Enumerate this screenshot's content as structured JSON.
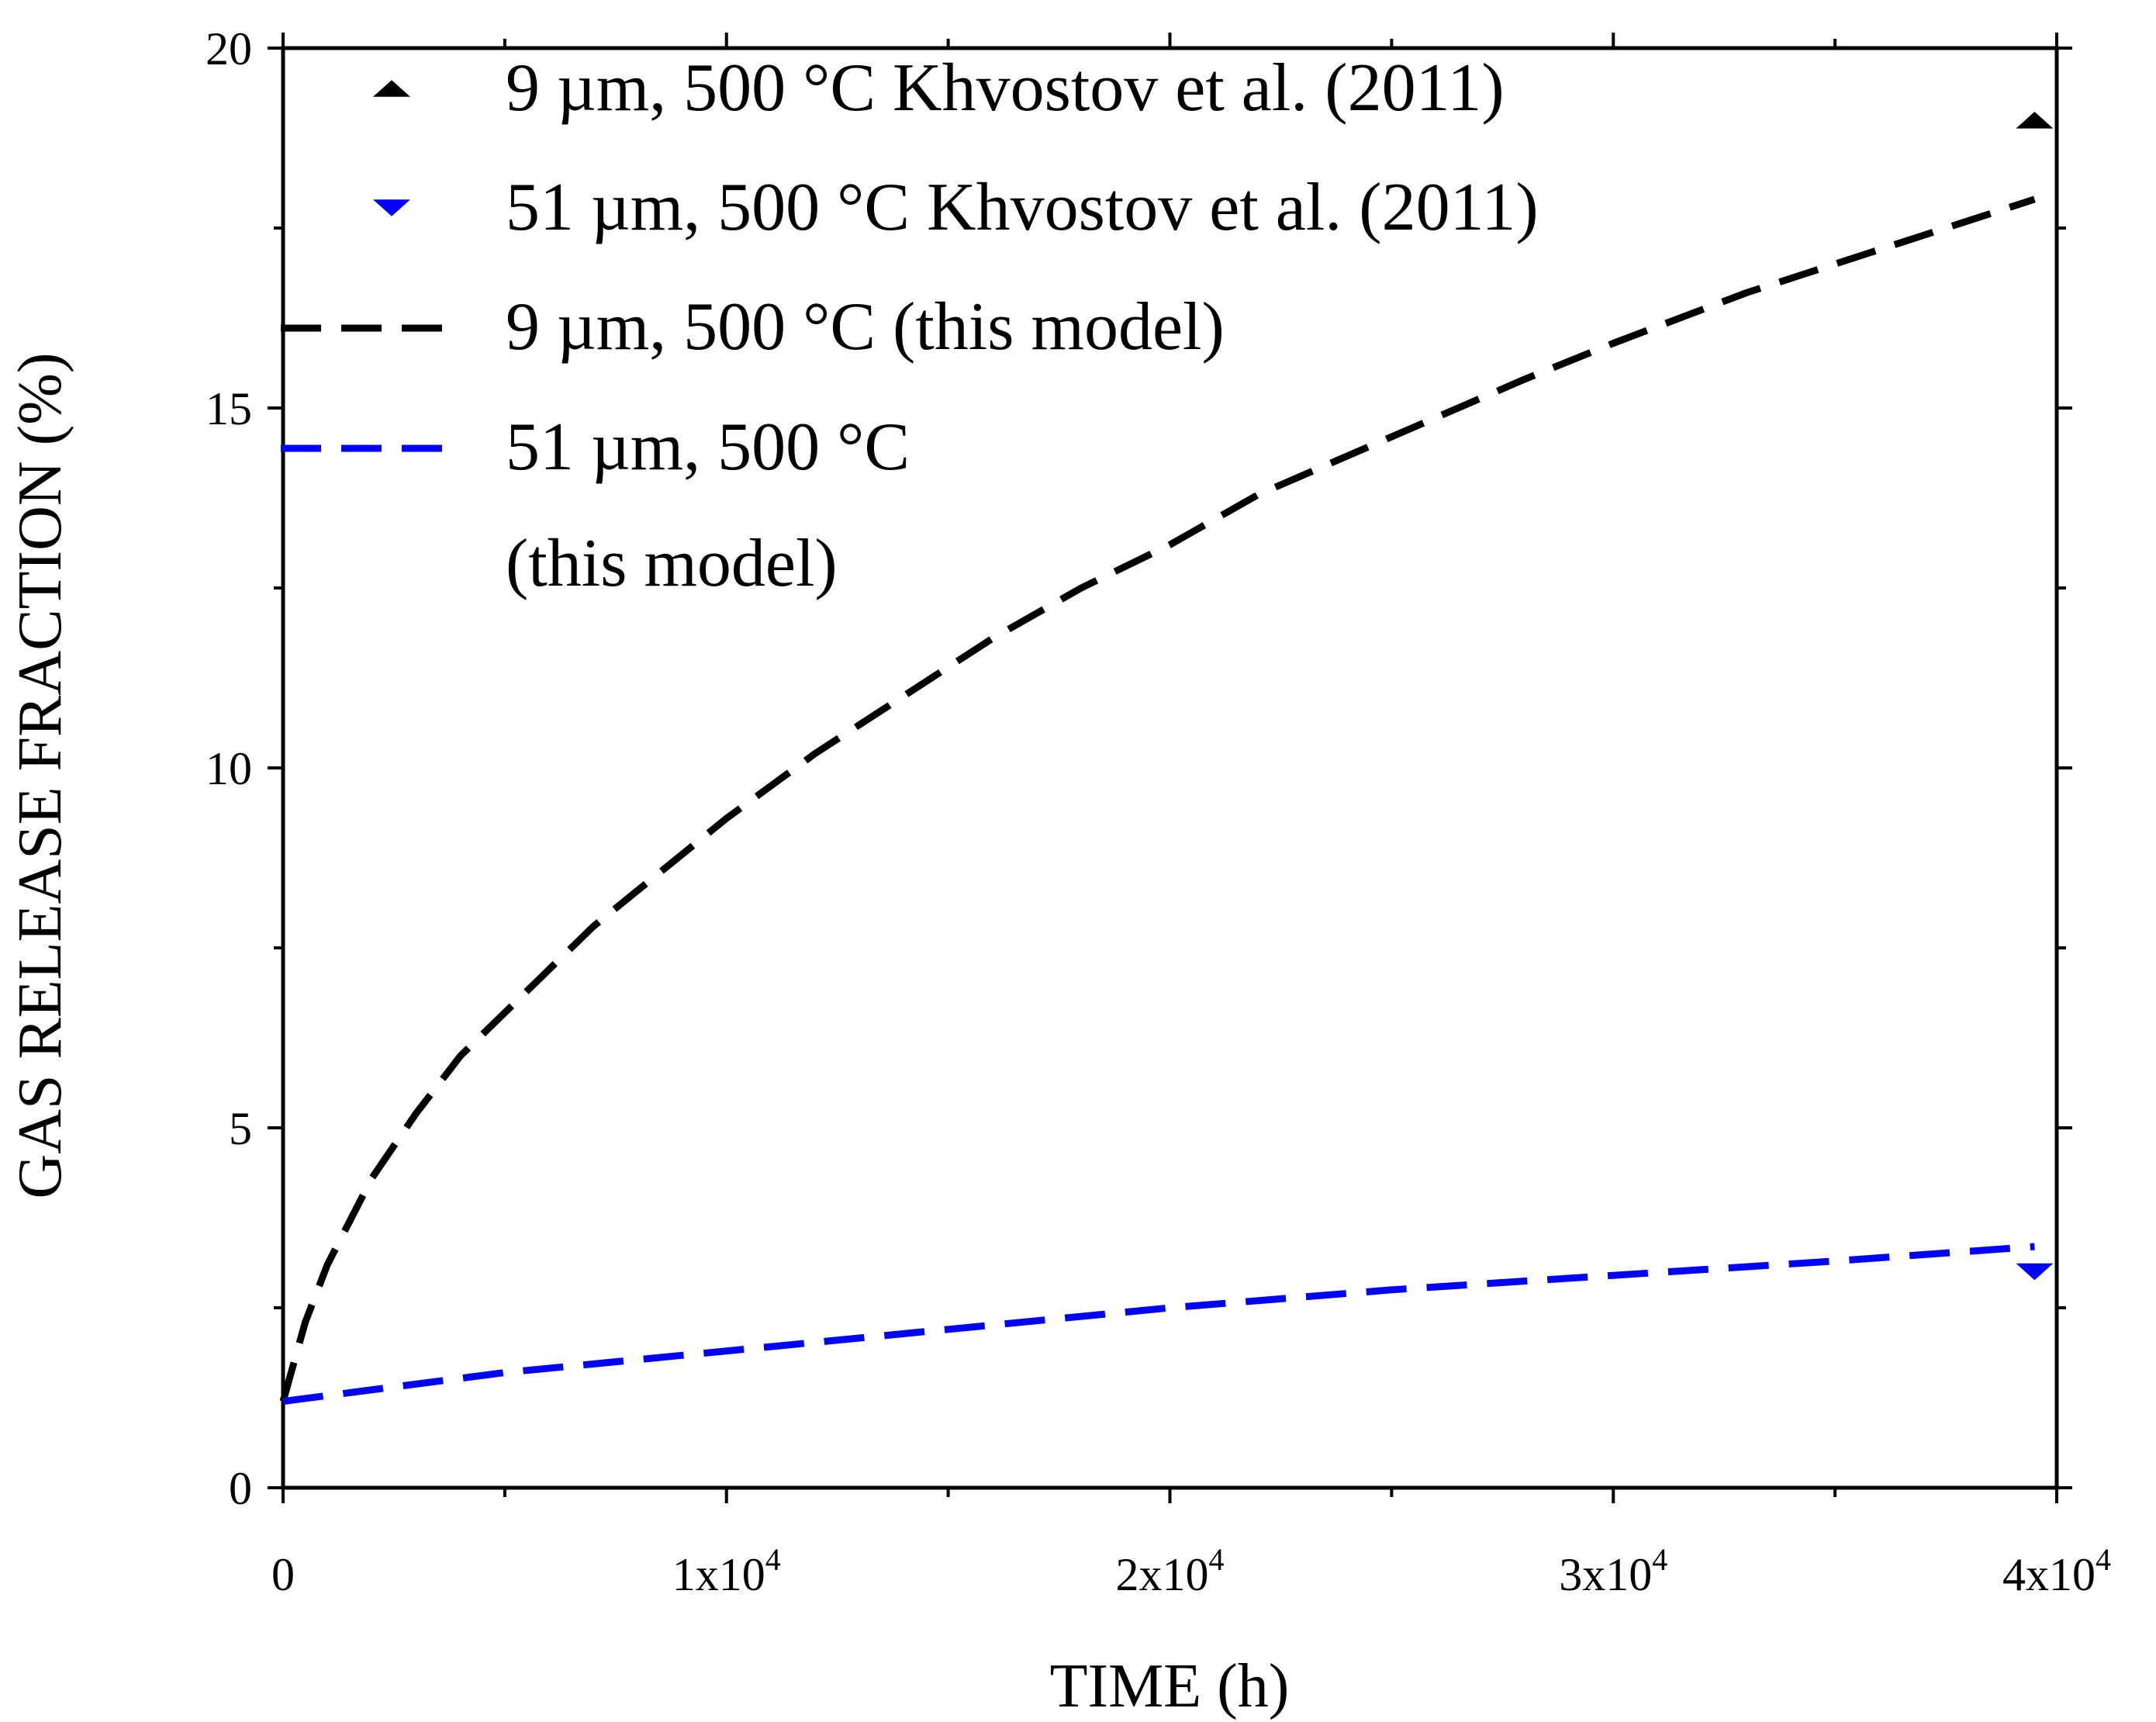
{
  "chart_data": {
    "type": "line",
    "title": "",
    "xlabel": "TIME (h)",
    "ylabel": "GAS RELEASE FRACTION (%)",
    "xlim": [
      0,
      40000
    ],
    "ylim": [
      0,
      20
    ],
    "grid": false,
    "legend_position": "top-left",
    "x_ticks": [
      {
        "value": 0,
        "base": "0",
        "exp": ""
      },
      {
        "value": 10000,
        "base": "1x10",
        "exp": "4"
      },
      {
        "value": 20000,
        "base": "2x10",
        "exp": "4"
      },
      {
        "value": 30000,
        "base": "3x10",
        "exp": "4"
      },
      {
        "value": 40000,
        "base": "4x10",
        "exp": "4"
      }
    ],
    "y_ticks": [
      {
        "value": 0,
        "label": "0"
      },
      {
        "value": 5,
        "label": "5"
      },
      {
        "value": 10,
        "label": "10"
      },
      {
        "value": 15,
        "label": "15"
      },
      {
        "value": 20,
        "label": "20"
      }
    ],
    "x_minor": [
      5000,
      15000,
      25000,
      35000
    ],
    "y_minor": [
      2.5,
      7.5,
      12.5,
      17.5
    ],
    "series": [
      {
        "name": "9 µm, 500 °C Khvostov et al. (2011)",
        "style": "marker",
        "marker": "triangle-up",
        "color": "#000000",
        "points": [
          [
            39500,
            19.0
          ]
        ]
      },
      {
        "name": "51 µm, 500 °C Khvostov et al. (2011)",
        "style": "marker",
        "marker": "triangle-down",
        "color": "#0000ff",
        "points": [
          [
            39500,
            3.0
          ]
        ]
      },
      {
        "name": "9 µm, 500 °C (this model)",
        "style": "dashed",
        "color": "#000000",
        "points": [
          [
            0,
            1.2
          ],
          [
            500,
            2.3
          ],
          [
            1000,
            3.1
          ],
          [
            2000,
            4.3
          ],
          [
            3000,
            5.2
          ],
          [
            4000,
            6.0
          ],
          [
            5000,
            6.6
          ],
          [
            6000,
            7.2
          ],
          [
            7000,
            7.8
          ],
          [
            8000,
            8.3
          ],
          [
            10000,
            9.3
          ],
          [
            12000,
            10.2
          ],
          [
            14000,
            11.0
          ],
          [
            16000,
            11.8
          ],
          [
            18000,
            12.5
          ],
          [
            20000,
            13.1
          ],
          [
            22000,
            13.8
          ],
          [
            25000,
            14.6
          ],
          [
            28000,
            15.4
          ],
          [
            30000,
            15.9
          ],
          [
            33000,
            16.6
          ],
          [
            36000,
            17.2
          ],
          [
            39000,
            17.8
          ],
          [
            39500,
            17.9
          ]
        ]
      },
      {
        "name": "51 µm, 500 °C\n(this model)",
        "style": "dashed",
        "color": "#0000ff",
        "points": [
          [
            0,
            1.2
          ],
          [
            5000,
            1.6
          ],
          [
            10000,
            1.9
          ],
          [
            15000,
            2.2
          ],
          [
            20000,
            2.5
          ],
          [
            25000,
            2.75
          ],
          [
            30000,
            2.95
          ],
          [
            35000,
            3.15
          ],
          [
            39500,
            3.35
          ]
        ]
      }
    ],
    "legend": [
      {
        "series": 0,
        "lines": [
          "9 µm, 500 °C Khvostov et al. (2011)"
        ]
      },
      {
        "series": 1,
        "lines": [
          "51 µm, 500 °C Khvostov et al. (2011)"
        ]
      },
      {
        "series": 2,
        "lines": [
          "9 µm, 500 °C (this model)"
        ]
      },
      {
        "series": 3,
        "lines": [
          "51 µm, 500 °C",
          "(this model)"
        ]
      }
    ]
  }
}
